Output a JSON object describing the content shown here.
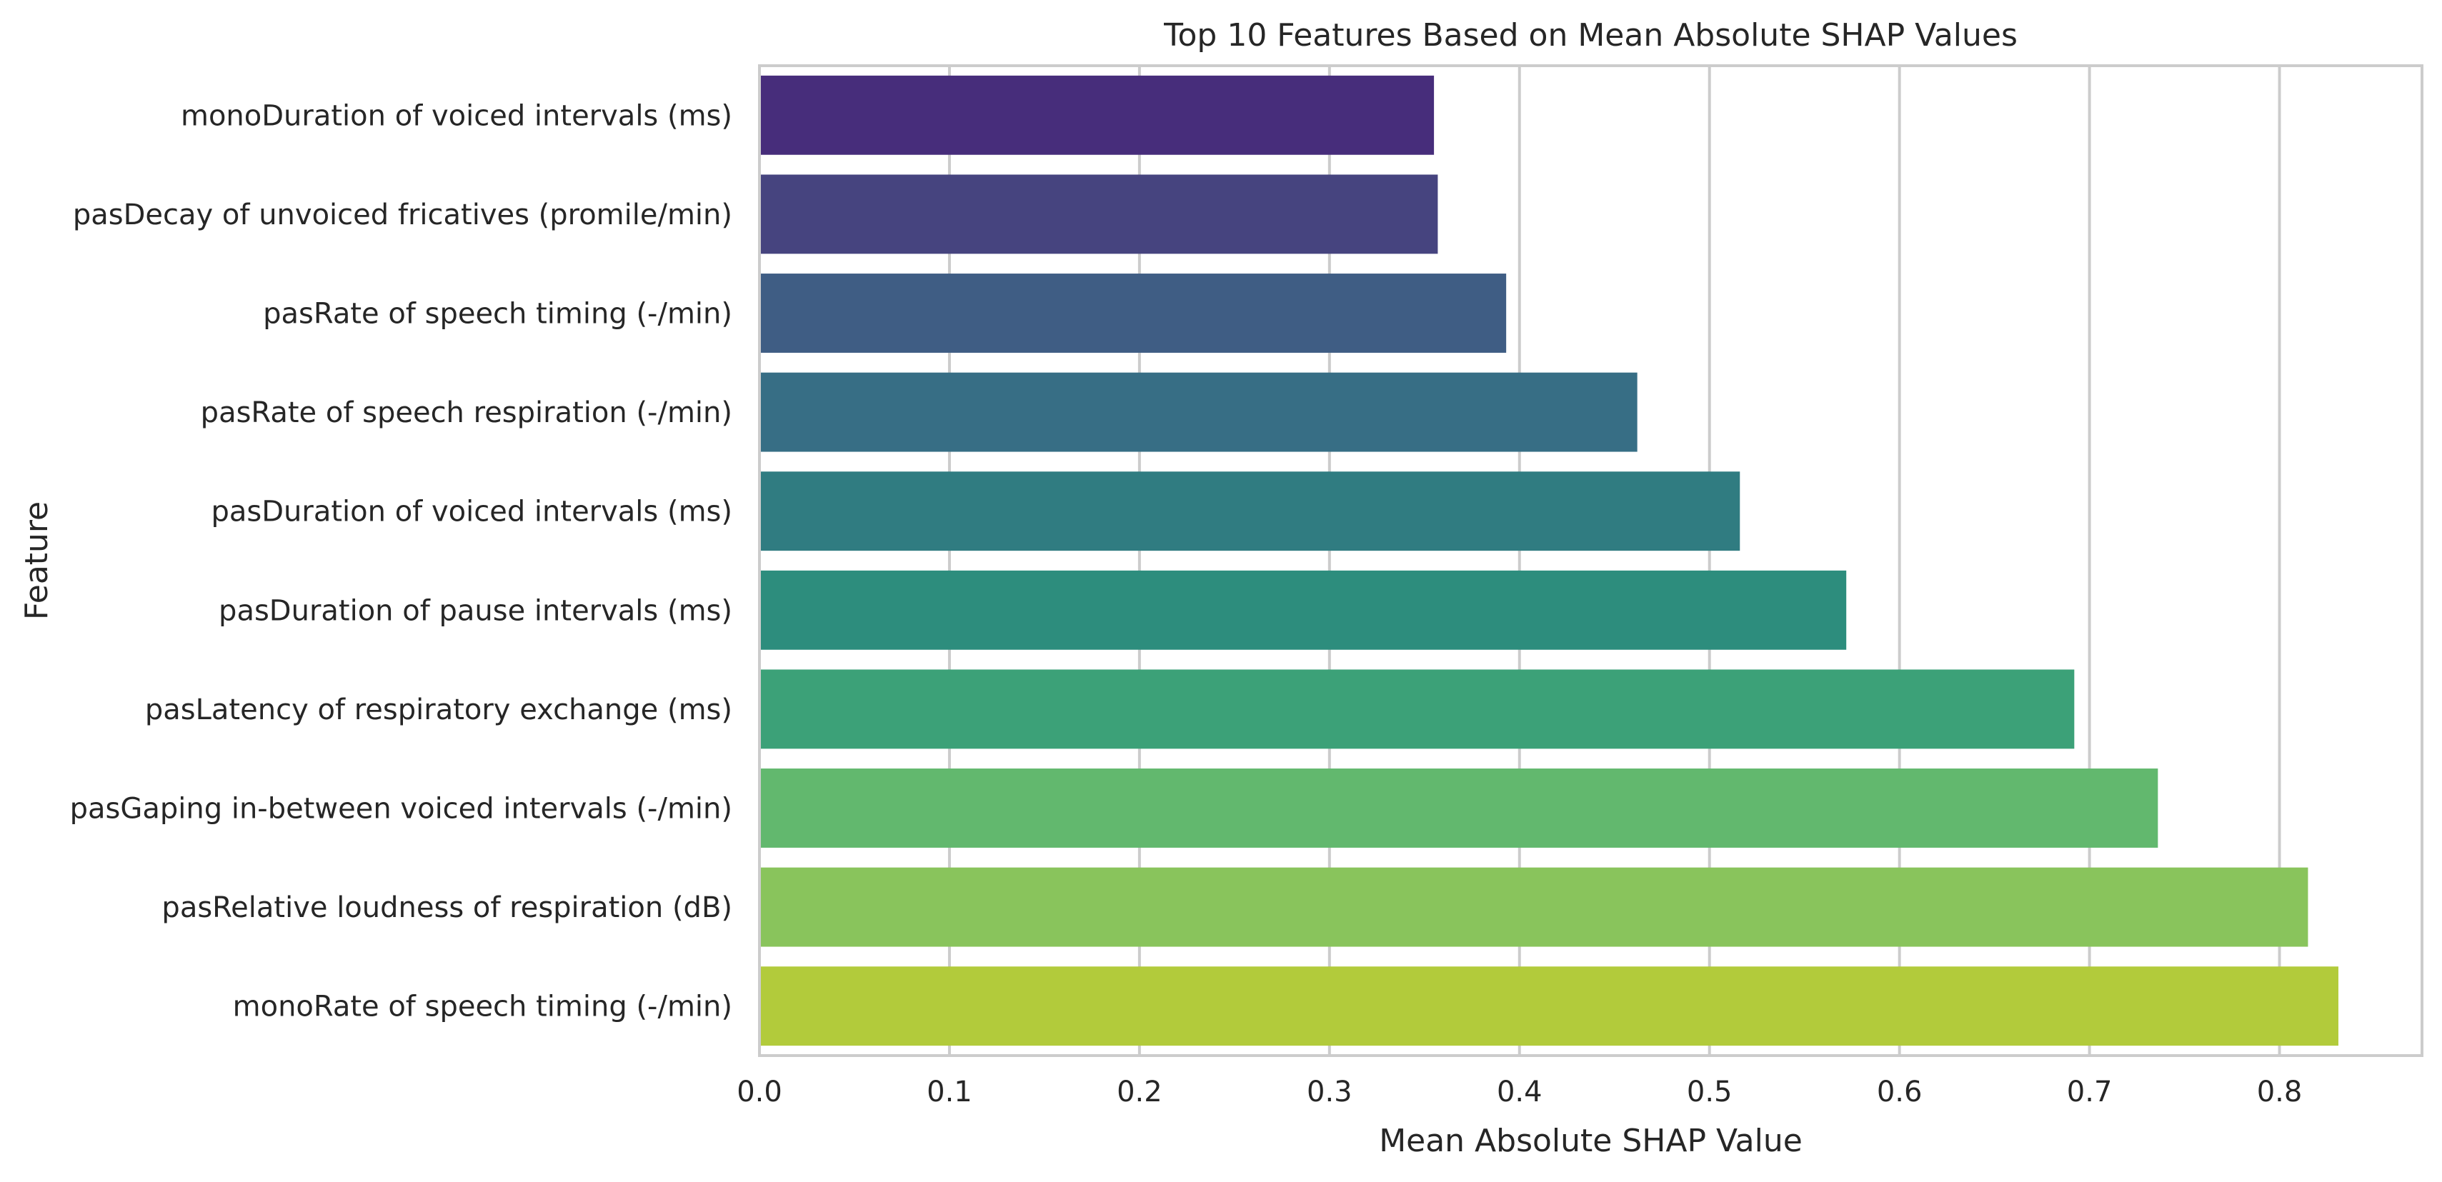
{
  "chart_data": {
    "type": "bar",
    "orientation": "horizontal",
    "title": "Top 10 Features Based on Mean Absolute SHAP Values",
    "xlabel": "Mean Absolute SHAP Value",
    "ylabel": "Feature",
    "xlim": [
      0,
      0.875
    ],
    "xticks": [
      "0.0",
      "0.1",
      "0.2",
      "0.3",
      "0.4",
      "0.5",
      "0.6",
      "0.7",
      "0.8"
    ],
    "grid": "vertical",
    "categories": [
      "monoDuration of voiced intervals (ms)",
      "pasDecay of unvoiced fricatives (promile/min)",
      "pasRate of speech timing (-/min)",
      "pasRate of speech respiration (-/min)",
      "pasDuration of voiced intervals (ms)",
      "pasDuration of pause intervals (ms)",
      "pasLatency of respiratory exchange (ms)",
      "pasGaping in-between voiced intervals (-/min)",
      "pasRelative loudness of respiration (dB)",
      "monoRate of speech timing (-/min)"
    ],
    "values": [
      0.355,
      0.357,
      0.393,
      0.462,
      0.516,
      0.572,
      0.692,
      0.736,
      0.815,
      0.831
    ],
    "colors": [
      "#472d7b",
      "#46447f",
      "#3f5d84",
      "#376e85",
      "#307c81",
      "#2d8d7d",
      "#3ca178",
      "#62b86e",
      "#89c45c",
      "#b2cb3b"
    ]
  }
}
